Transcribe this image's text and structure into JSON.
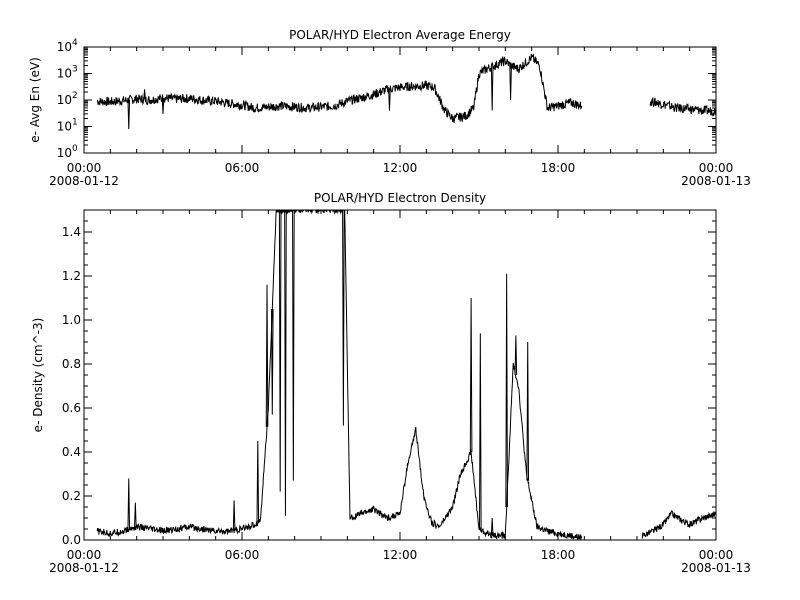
{
  "chart_data": [
    {
      "type": "line",
      "title": "POLAR/HYD  Electron Average Energy",
      "ylabel": "e- Avg En (eV)",
      "yscale": "log",
      "ylim": [
        1,
        10000
      ],
      "y_ticks": [
        {
          "value": 1,
          "exp": "0"
        },
        {
          "value": 10,
          "exp": "1"
        },
        {
          "value": 100,
          "exp": "2"
        },
        {
          "value": 1000,
          "exp": "3"
        },
        {
          "value": 10000,
          "exp": "4"
        }
      ],
      "x_ticks": [
        "00:00",
        "06:00",
        "12:00",
        "18:00",
        "00:00"
      ],
      "x_dates": [
        "2008-01-12",
        "2008-01-13"
      ],
      "series": [
        {
          "segments": [
            {
              "x": [
                0.5,
                1,
                1.5,
                2,
                2.5,
                3,
                3.5,
                4,
                4.5,
                5,
                5.5,
                6,
                6.5,
                7,
                7.5,
                8,
                8.5,
                9,
                9.5,
                10,
                10.5,
                11,
                11.5,
                12,
                12.5,
                13,
                13.3,
                13.7,
                14,
                14.5,
                14.8,
                15,
                15.3,
                15.6,
                16,
                16.2,
                16.5,
                17,
                17.3,
                17.6,
                18,
                18.5,
                18.9
              ],
              "y": [
                90,
                85,
                95,
                110,
                100,
                120,
                110,
                115,
                100,
                90,
                75,
                65,
                50,
                55,
                60,
                55,
                50,
                55,
                60,
                90,
                120,
                160,
                250,
                300,
                330,
                350,
                300,
                40,
                20,
                25,
                50,
                1000,
                1500,
                2000,
                3000,
                2000,
                1500,
                4000,
                2000,
                50,
                60,
                80,
                60
              ]
            },
            {
              "x": [
                21.5,
                22,
                22.5,
                23,
                23.5,
                24
              ],
              "y": [
                90,
                70,
                50,
                45,
                40,
                38
              ]
            }
          ],
          "spikes": [
            {
              "x": 1.7,
              "y": 8
            },
            {
              "x": 2.3,
              "y": 250
            },
            {
              "x": 3,
              "y": 30
            },
            {
              "x": 11.6,
              "y": 40
            },
            {
              "x": 15.5,
              "y": 40
            },
            {
              "x": 16.2,
              "y": 100
            }
          ]
        }
      ]
    },
    {
      "type": "line",
      "title": "POLAR/HYD  Electron Density",
      "ylabel": "e- Density (cm^-3)",
      "ylim": [
        0,
        1.5
      ],
      "y_ticks": [
        "0.0",
        "0.2",
        "0.4",
        "0.6",
        "0.8",
        "1.0",
        "1.2",
        "1.4"
      ],
      "x_ticks": [
        "00:00",
        "06:00",
        "12:00",
        "18:00",
        "00:00"
      ],
      "x_dates": [
        "2008-01-12",
        "2008-01-13"
      ],
      "series": [
        {
          "segments": [
            {
              "x": [
                0.5,
                1,
                1.5,
                2,
                2.5,
                3,
                3.5,
                4,
                4.5,
                5,
                5.5,
                6,
                6.5,
                6.7,
                7,
                7.3,
                7.6,
                7.9,
                8.2,
                8.6,
                9,
                9.4,
                9.7,
                9.9,
                10.1,
                10.5,
                11,
                11.5,
                12,
                12.3,
                12.6,
                12.9,
                13.2,
                13.5,
                14,
                14.3,
                14.7,
                15,
                15.3,
                15.6,
                16,
                16.3,
                16.5,
                16.8,
                17.2,
                17.6,
                18,
                18.5,
                18.9
              ],
              "y": [
                0.04,
                0.03,
                0.04,
                0.06,
                0.05,
                0.04,
                0.05,
                0.06,
                0.05,
                0.04,
                0.04,
                0.05,
                0.07,
                0.09,
                0.6,
                1.5,
                1.5,
                1.5,
                1.5,
                1.5,
                1.5,
                1.5,
                1.5,
                1.5,
                0.1,
                0.12,
                0.14,
                0.1,
                0.12,
                0.35,
                0.5,
                0.2,
                0.08,
                0.06,
                0.15,
                0.3,
                0.4,
                0.05,
                0.03,
                0.02,
                0.02,
                0.8,
                0.7,
                0.3,
                0.06,
                0.04,
                0.03,
                0.02,
                0.01
              ]
            },
            {
              "x": [
                21.2,
                21.6,
                22,
                22.3,
                22.7,
                23,
                23.5,
                24
              ],
              "y": [
                0.02,
                0.04,
                0.07,
                0.12,
                0.09,
                0.07,
                0.1,
                0.12
              ]
            }
          ],
          "spikes": [
            {
              "x": 1.7,
              "y": 0.28
            },
            {
              "x": 1.95,
              "y": 0.17
            },
            {
              "x": 5.7,
              "y": 0.18
            },
            {
              "x": 6.6,
              "y": 0.45
            },
            {
              "x": 6.95,
              "y": 1.16
            },
            {
              "x": 7.15,
              "y": 0.57
            },
            {
              "x": 7.45,
              "y": 0.22
            },
            {
              "x": 7.65,
              "y": 0.11
            },
            {
              "x": 7.95,
              "y": 0.27
            },
            {
              "x": 9.85,
              "y": 0.52
            },
            {
              "x": 14.7,
              "y": 1.1
            },
            {
              "x": 15.05,
              "y": 0.94
            },
            {
              "x": 15.3,
              "y": 0.03
            },
            {
              "x": 15.5,
              "y": 0.1
            },
            {
              "x": 16.05,
              "y": 1.21
            },
            {
              "x": 16.4,
              "y": 0.93
            },
            {
              "x": 16.85,
              "y": 0.9
            }
          ]
        }
      ]
    }
  ]
}
